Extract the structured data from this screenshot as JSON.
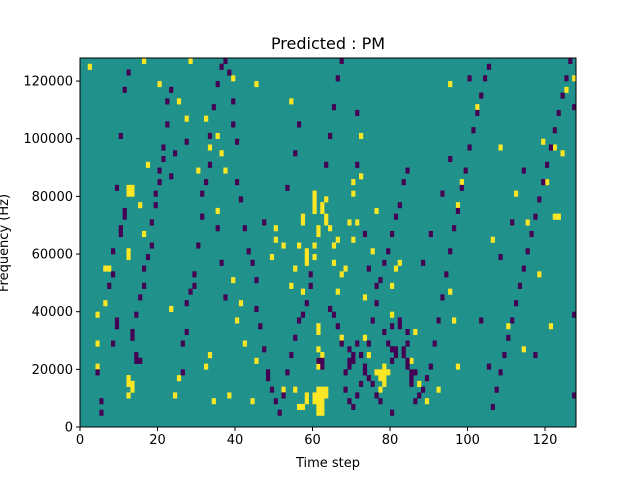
{
  "chart_data": {
    "type": "heatmap",
    "title": "Predicted : PM",
    "xlabel": "Time step",
    "ylabel": "Frequency (Hz)",
    "xlim": [
      0,
      128
    ],
    "ylim": [
      0,
      128000
    ],
    "x_ticks": [
      0,
      20,
      40,
      60,
      80,
      100,
      120
    ],
    "y_ticks": [
      0,
      20000,
      40000,
      60000,
      80000,
      100000,
      120000
    ],
    "x_tick_labels": [
      "0",
      "20",
      "40",
      "60",
      "80",
      "100",
      "120"
    ],
    "y_tick_labels": [
      "0",
      "20000",
      "40000",
      "60000",
      "80000",
      "100000",
      "120000"
    ],
    "n_time_steps": 128,
    "n_freq_bins": 64,
    "colors": {
      "background": "#21918c",
      "high": "#fde725",
      "low": "#440154"
    },
    "high_cells": [
      [
        61,
        2
      ],
      [
        62,
        2
      ],
      [
        61,
        3
      ],
      [
        62,
        3
      ],
      [
        61,
        4
      ],
      [
        62,
        4
      ],
      [
        61,
        5
      ],
      [
        62,
        5
      ],
      [
        61,
        6
      ],
      [
        62,
        6
      ],
      [
        60,
        4
      ],
      [
        60,
        5
      ],
      [
        63,
        5
      ],
      [
        63,
        6
      ],
      [
        61,
        10
      ],
      [
        61,
        11
      ],
      [
        62,
        12
      ],
      [
        61,
        13
      ],
      [
        61,
        16
      ],
      [
        61,
        17
      ],
      [
        78,
        7
      ],
      [
        78,
        8
      ],
      [
        78,
        9
      ],
      [
        77,
        8
      ],
      [
        77,
        9
      ],
      [
        79,
        9
      ],
      [
        78,
        10
      ],
      [
        57,
        3
      ],
      [
        56,
        3
      ],
      [
        58,
        4
      ],
      [
        58,
        5
      ],
      [
        55,
        6
      ],
      [
        52,
        6
      ],
      [
        44,
        4
      ],
      [
        38,
        5
      ],
      [
        34,
        4
      ],
      [
        33,
        12
      ],
      [
        32,
        10
      ],
      [
        12,
        5
      ],
      [
        12,
        7
      ],
      [
        12,
        8
      ],
      [
        13,
        6
      ],
      [
        13,
        7
      ],
      [
        4,
        10
      ],
      [
        4,
        14
      ],
      [
        4,
        19
      ],
      [
        6,
        21
      ],
      [
        6,
        27
      ],
      [
        7,
        27
      ],
      [
        12,
        29
      ],
      [
        12,
        30
      ],
      [
        12,
        40
      ],
      [
        12,
        41
      ],
      [
        13,
        40
      ],
      [
        13,
        41
      ],
      [
        15,
        38
      ],
      [
        16,
        33
      ],
      [
        17,
        45
      ],
      [
        20,
        59
      ],
      [
        24,
        5
      ],
      [
        25,
        8
      ],
      [
        23,
        20
      ],
      [
        27,
        53
      ],
      [
        28,
        63
      ],
      [
        30,
        44
      ],
      [
        32,
        53
      ],
      [
        33,
        48
      ],
      [
        35,
        37
      ],
      [
        35,
        50
      ],
      [
        36,
        47
      ],
      [
        37,
        44
      ],
      [
        39,
        25
      ],
      [
        40,
        18
      ],
      [
        41,
        21
      ],
      [
        42,
        14
      ],
      [
        45,
        11
      ],
      [
        50,
        34
      ],
      [
        50,
        32
      ],
      [
        49,
        29
      ],
      [
        52,
        31
      ],
      [
        54,
        24
      ],
      [
        55,
        27
      ],
      [
        56,
        31
      ],
      [
        57,
        35
      ],
      [
        57,
        36
      ],
      [
        58,
        28
      ],
      [
        58,
        29
      ],
      [
        58,
        30
      ],
      [
        57,
        23
      ],
      [
        60,
        29
      ],
      [
        60,
        31
      ],
      [
        60,
        37
      ],
      [
        60,
        38
      ],
      [
        60,
        39
      ],
      [
        60,
        40
      ],
      [
        61,
        33
      ],
      [
        61,
        34
      ],
      [
        62,
        37
      ],
      [
        62,
        38
      ],
      [
        63,
        35
      ],
      [
        63,
        36
      ],
      [
        63,
        39
      ],
      [
        64,
        34
      ],
      [
        65,
        31
      ],
      [
        65,
        28
      ],
      [
        66,
        23
      ],
      [
        68,
        27
      ],
      [
        69,
        35
      ],
      [
        70,
        40
      ],
      [
        70,
        42
      ],
      [
        72,
        43
      ],
      [
        72,
        50
      ],
      [
        73,
        22
      ],
      [
        73,
        15
      ],
      [
        74,
        12
      ],
      [
        76,
        9
      ],
      [
        77,
        6
      ],
      [
        80,
        19
      ],
      [
        80,
        24
      ],
      [
        81,
        27
      ],
      [
        82,
        28
      ],
      [
        85,
        11
      ],
      [
        86,
        16
      ],
      [
        87,
        7
      ],
      [
        89,
        4
      ],
      [
        92,
        6
      ],
      [
        95,
        23
      ],
      [
        96,
        18
      ],
      [
        97,
        10
      ],
      [
        95,
        59
      ],
      [
        97,
        38
      ],
      [
        98,
        42
      ],
      [
        102,
        55
      ],
      [
        106,
        32
      ],
      [
        108,
        48
      ],
      [
        110,
        17
      ],
      [
        112,
        40
      ],
      [
        114,
        13
      ],
      [
        115,
        35
      ],
      [
        118,
        26
      ],
      [
        119,
        49
      ],
      [
        120,
        42
      ],
      [
        121,
        17
      ],
      [
        122,
        36
      ],
      [
        122,
        48
      ],
      [
        123,
        36
      ],
      [
        123,
        36
      ],
      [
        124,
        47
      ],
      [
        125,
        58
      ],
      [
        127,
        60
      ],
      [
        2,
        62
      ],
      [
        16,
        63
      ],
      [
        25,
        56
      ],
      [
        39,
        60
      ],
      [
        45,
        59
      ],
      [
        54,
        56
      ],
      [
        66,
        32
      ],
      [
        67,
        26
      ],
      [
        67,
        15
      ],
      [
        70,
        32
      ],
      [
        71,
        35
      ],
      [
        75,
        30
      ],
      [
        76,
        37
      ]
    ],
    "low_cells": [
      [
        62,
        10
      ],
      [
        62,
        11
      ],
      [
        61,
        11
      ],
      [
        80,
        11
      ],
      [
        81,
        12
      ],
      [
        80,
        13
      ],
      [
        81,
        13
      ],
      [
        79,
        14
      ],
      [
        80,
        17
      ],
      [
        69,
        10
      ],
      [
        69,
        11
      ],
      [
        70,
        11
      ],
      [
        70,
        12
      ],
      [
        69,
        13
      ],
      [
        71,
        14
      ],
      [
        72,
        12
      ],
      [
        73,
        10
      ],
      [
        74,
        8
      ],
      [
        75,
        7
      ],
      [
        76,
        5
      ],
      [
        77,
        4
      ],
      [
        85,
        7
      ],
      [
        85,
        8
      ],
      [
        85,
        9
      ],
      [
        86,
        9
      ],
      [
        84,
        10
      ],
      [
        84,
        11
      ],
      [
        83,
        12
      ],
      [
        83,
        13
      ],
      [
        84,
        14
      ],
      [
        84,
        16
      ],
      [
        82,
        17
      ],
      [
        82,
        18
      ],
      [
        5,
        2
      ],
      [
        5,
        4
      ],
      [
        4,
        9
      ],
      [
        7,
        24
      ],
      [
        8,
        26
      ],
      [
        9,
        17
      ],
      [
        9,
        18
      ],
      [
        8,
        30
      ],
      [
        10,
        33
      ],
      [
        10,
        34
      ],
      [
        11,
        36
      ],
      [
        11,
        37
      ],
      [
        14,
        11
      ],
      [
        15,
        11
      ],
      [
        14,
        12
      ],
      [
        13,
        15
      ],
      [
        13,
        16
      ],
      [
        14,
        19
      ],
      [
        15,
        22
      ],
      [
        16,
        24
      ],
      [
        16,
        27
      ],
      [
        17,
        29
      ],
      [
        18,
        31
      ],
      [
        18,
        35
      ],
      [
        19,
        38
      ],
      [
        19,
        40
      ],
      [
        20,
        42
      ],
      [
        20,
        44
      ],
      [
        21,
        46
      ],
      [
        21,
        48
      ],
      [
        22,
        52
      ],
      [
        22,
        56
      ],
      [
        23,
        58
      ],
      [
        26,
        9
      ],
      [
        26,
        14
      ],
      [
        27,
        16
      ],
      [
        27,
        21
      ],
      [
        28,
        23
      ],
      [
        29,
        24
      ],
      [
        29,
        26
      ],
      [
        30,
        31
      ],
      [
        31,
        36
      ],
      [
        31,
        40
      ],
      [
        32,
        42
      ],
      [
        33,
        45
      ],
      [
        33,
        50
      ],
      [
        34,
        55
      ],
      [
        35,
        59
      ],
      [
        36,
        62
      ],
      [
        37,
        63
      ],
      [
        38,
        61
      ],
      [
        39,
        56
      ],
      [
        39,
        52
      ],
      [
        40,
        49
      ],
      [
        40,
        42
      ],
      [
        41,
        39
      ],
      [
        42,
        34
      ],
      [
        43,
        30
      ],
      [
        44,
        28
      ],
      [
        45,
        25
      ],
      [
        45,
        20
      ],
      [
        46,
        17
      ],
      [
        47,
        13
      ],
      [
        48,
        8
      ],
      [
        48,
        9
      ],
      [
        49,
        6
      ],
      [
        50,
        4
      ],
      [
        51,
        2
      ],
      [
        52,
        5
      ],
      [
        53,
        9
      ],
      [
        54,
        12
      ],
      [
        55,
        15
      ],
      [
        56,
        18
      ],
      [
        57,
        19
      ],
      [
        58,
        21
      ],
      [
        59,
        24
      ],
      [
        59,
        26
      ],
      [
        64,
        20
      ],
      [
        65,
        19
      ],
      [
        66,
        17
      ],
      [
        67,
        14
      ],
      [
        68,
        9
      ],
      [
        68,
        6
      ],
      [
        69,
        4
      ],
      [
        70,
        3
      ],
      [
        71,
        5
      ],
      [
        72,
        7
      ],
      [
        73,
        9
      ],
      [
        74,
        14
      ],
      [
        75,
        18
      ],
      [
        76,
        21
      ],
      [
        77,
        25
      ],
      [
        78,
        28
      ],
      [
        79,
        30
      ],
      [
        80,
        33
      ],
      [
        81,
        36
      ],
      [
        82,
        38
      ],
      [
        83,
        42
      ],
      [
        84,
        44
      ],
      [
        86,
        4
      ],
      [
        87,
        5
      ],
      [
        88,
        6
      ],
      [
        89,
        8
      ],
      [
        90,
        10
      ],
      [
        91,
        14
      ],
      [
        92,
        18
      ],
      [
        93,
        22
      ],
      [
        94,
        26
      ],
      [
        95,
        30
      ],
      [
        96,
        34
      ],
      [
        97,
        37
      ],
      [
        98,
        41
      ],
      [
        99,
        44
      ],
      [
        100,
        48
      ],
      [
        101,
        51
      ],
      [
        102,
        54
      ],
      [
        103,
        57
      ],
      [
        104,
        60
      ],
      [
        105,
        62
      ],
      [
        106,
        3
      ],
      [
        107,
        6
      ],
      [
        108,
        9
      ],
      [
        109,
        12
      ],
      [
        110,
        15
      ],
      [
        111,
        18
      ],
      [
        112,
        21
      ],
      [
        113,
        24
      ],
      [
        114,
        27
      ],
      [
        115,
        30
      ],
      [
        116,
        33
      ],
      [
        117,
        36
      ],
      [
        118,
        39
      ],
      [
        119,
        42
      ],
      [
        120,
        45
      ],
      [
        121,
        48
      ],
      [
        122,
        51
      ],
      [
        123,
        54
      ],
      [
        124,
        57
      ],
      [
        125,
        60
      ],
      [
        126,
        63
      ],
      [
        127,
        5
      ],
      [
        127,
        19
      ],
      [
        127,
        55
      ],
      [
        8,
        14
      ],
      [
        9,
        41
      ],
      [
        10,
        50
      ],
      [
        11,
        58
      ],
      [
        12,
        61
      ],
      [
        23,
        43
      ],
      [
        24,
        47
      ],
      [
        27,
        49
      ],
      [
        35,
        34
      ],
      [
        36,
        28
      ],
      [
        37,
        22
      ],
      [
        47,
        35
      ],
      [
        53,
        41
      ],
      [
        55,
        47
      ],
      [
        56,
        52
      ],
      [
        63,
        45
      ],
      [
        64,
        50
      ],
      [
        65,
        55
      ],
      [
        66,
        60
      ],
      [
        67,
        63
      ],
      [
        71,
        54
      ],
      [
        71,
        45
      ],
      [
        73,
        33
      ],
      [
        74,
        27
      ],
      [
        76,
        24
      ],
      [
        78,
        16
      ],
      [
        80,
        2
      ],
      [
        88,
        28
      ],
      [
        90,
        33
      ],
      [
        93,
        40
      ],
      [
        95,
        46
      ],
      [
        100,
        60
      ],
      [
        103,
        18
      ],
      [
        105,
        10
      ],
      [
        108,
        29
      ],
      [
        111,
        35
      ],
      [
        114,
        44
      ],
      [
        117,
        12
      ]
    ]
  }
}
